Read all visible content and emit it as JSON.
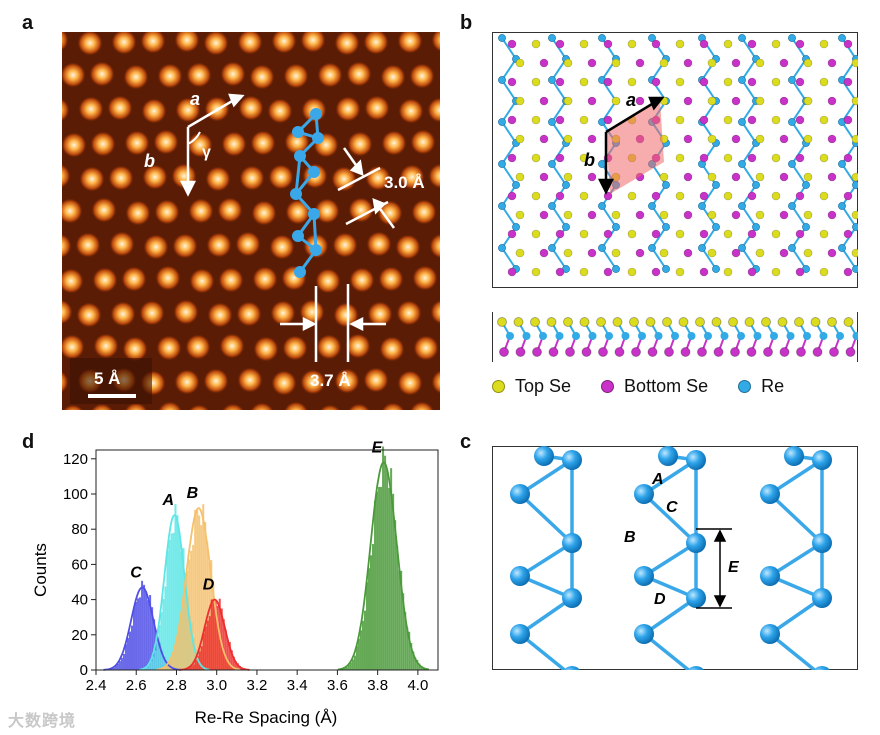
{
  "panels": {
    "a": {
      "label": "a",
      "vector_a": "a",
      "vector_b": "b",
      "angle": "γ",
      "spacing_top": "3.0 Å",
      "spacing_bottom": "3.7 Å",
      "scalebar": "5 Å"
    },
    "b": {
      "label": "b",
      "vector_a": "a",
      "vector_b": "b"
    },
    "c": {
      "label": "c",
      "bond_labels": [
        "A",
        "B",
        "C",
        "D",
        "E"
      ]
    },
    "d": {
      "label": "d"
    }
  },
  "legend": [
    {
      "label": "Top Se",
      "color": "#dcdc1e"
    },
    {
      "label": "Bottom Se",
      "color": "#c832c8"
    },
    {
      "label": "Re",
      "color": "#32aae6"
    }
  ],
  "watermark": "大数跨境",
  "chart_data": {
    "type": "bar",
    "subtype": "histogram",
    "xlabel": "Re-Re Spacing (Å)",
    "ylabel": "Counts",
    "xlim": [
      2.4,
      4.1
    ],
    "ylim": [
      0,
      125
    ],
    "xticks": [
      "2.4",
      "2.6",
      "2.8",
      "3.0",
      "3.2",
      "3.4",
      "3.6",
      "3.8",
      "4.0"
    ],
    "yticks": [
      "0",
      "20",
      "40",
      "60",
      "80",
      "100",
      "120"
    ],
    "grid": false,
    "series": [
      {
        "name": "C",
        "color": "#4f4fe6",
        "center": 2.63,
        "peak": 47,
        "sigma": 0.055
      },
      {
        "name": "A",
        "color": "#5ee6e6",
        "center": 2.79,
        "peak": 88,
        "sigma": 0.05
      },
      {
        "name": "B",
        "color": "#f5c06a",
        "center": 2.91,
        "peak": 92,
        "sigma": 0.06
      },
      {
        "name": "D",
        "color": "#ee2e2e",
        "center": 2.99,
        "peak": 40,
        "sigma": 0.05
      },
      {
        "name": "E",
        "color": "#4a9a3a",
        "center": 3.83,
        "peak": 118,
        "sigma": 0.065
      }
    ]
  }
}
